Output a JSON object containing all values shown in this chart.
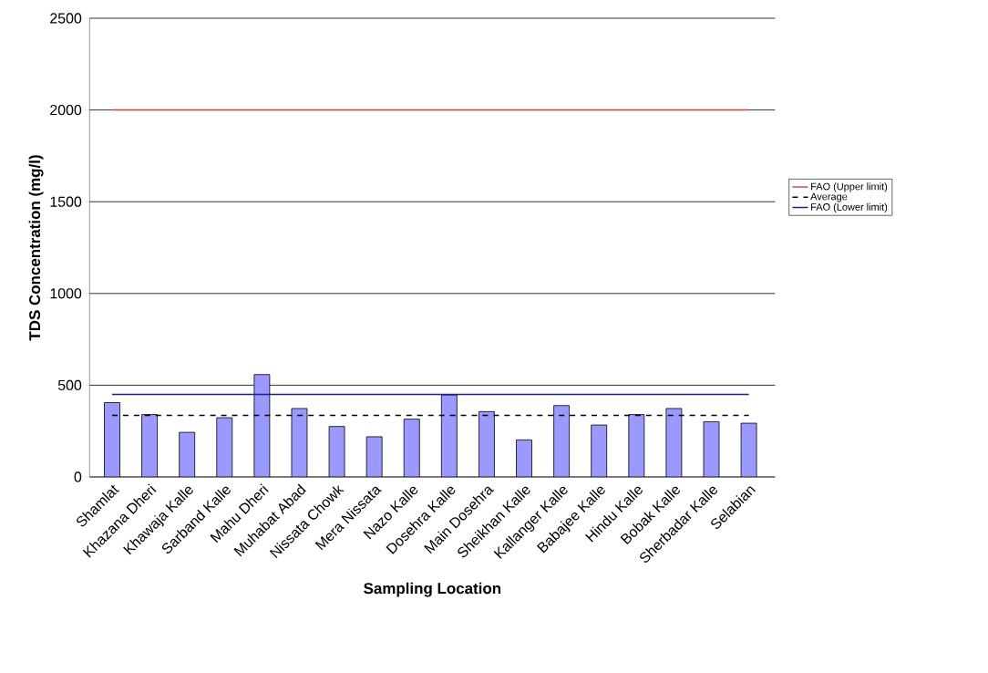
{
  "chart_data": {
    "type": "bar",
    "xlabel": "Sampling Location",
    "ylabel": "TDS Concentration (mg/l)",
    "categories": [
      "Shamlat",
      "Khazana Dheri",
      "Khawaja Kalle",
      "Sarband Kalle",
      "Mahu Dheri",
      "Muhabat Abad",
      "Nissata Chowk",
      "Mera Nissata",
      "Nazo Kalle",
      "Dosehra Kalle",
      "Main Dosehra",
      "Sheikhan Kalle",
      "Kallanger Kalle",
      "Babajee Kalle",
      "Hindu Kalle",
      "Bobak Kalle",
      "Sherbadar Kalle",
      "Selabian"
    ],
    "values": [
      405,
      340,
      243,
      323,
      558,
      373,
      275,
      219,
      315,
      447,
      356,
      202,
      389,
      283,
      340,
      373,
      301,
      293
    ],
    "color": "#9999ff",
    "ylim": [
      0,
      2500
    ],
    "yticks": [
      0,
      500,
      1000,
      1500,
      2000,
      2500
    ],
    "grid": "y",
    "legend": "right",
    "ref_lines": [
      {
        "axis": "y",
        "value": 2000,
        "label": "FAO (Upper limit)",
        "color": "#c0504d",
        "line_style": "solid"
      },
      {
        "axis": "y",
        "value": 336,
        "label": "Average",
        "color": "#000000",
        "line_style": "dashed"
      },
      {
        "axis": "y",
        "value": 450,
        "label": "FAO (Lower limit)",
        "color": "#1f1f8f",
        "line_style": "solid"
      }
    ]
  }
}
